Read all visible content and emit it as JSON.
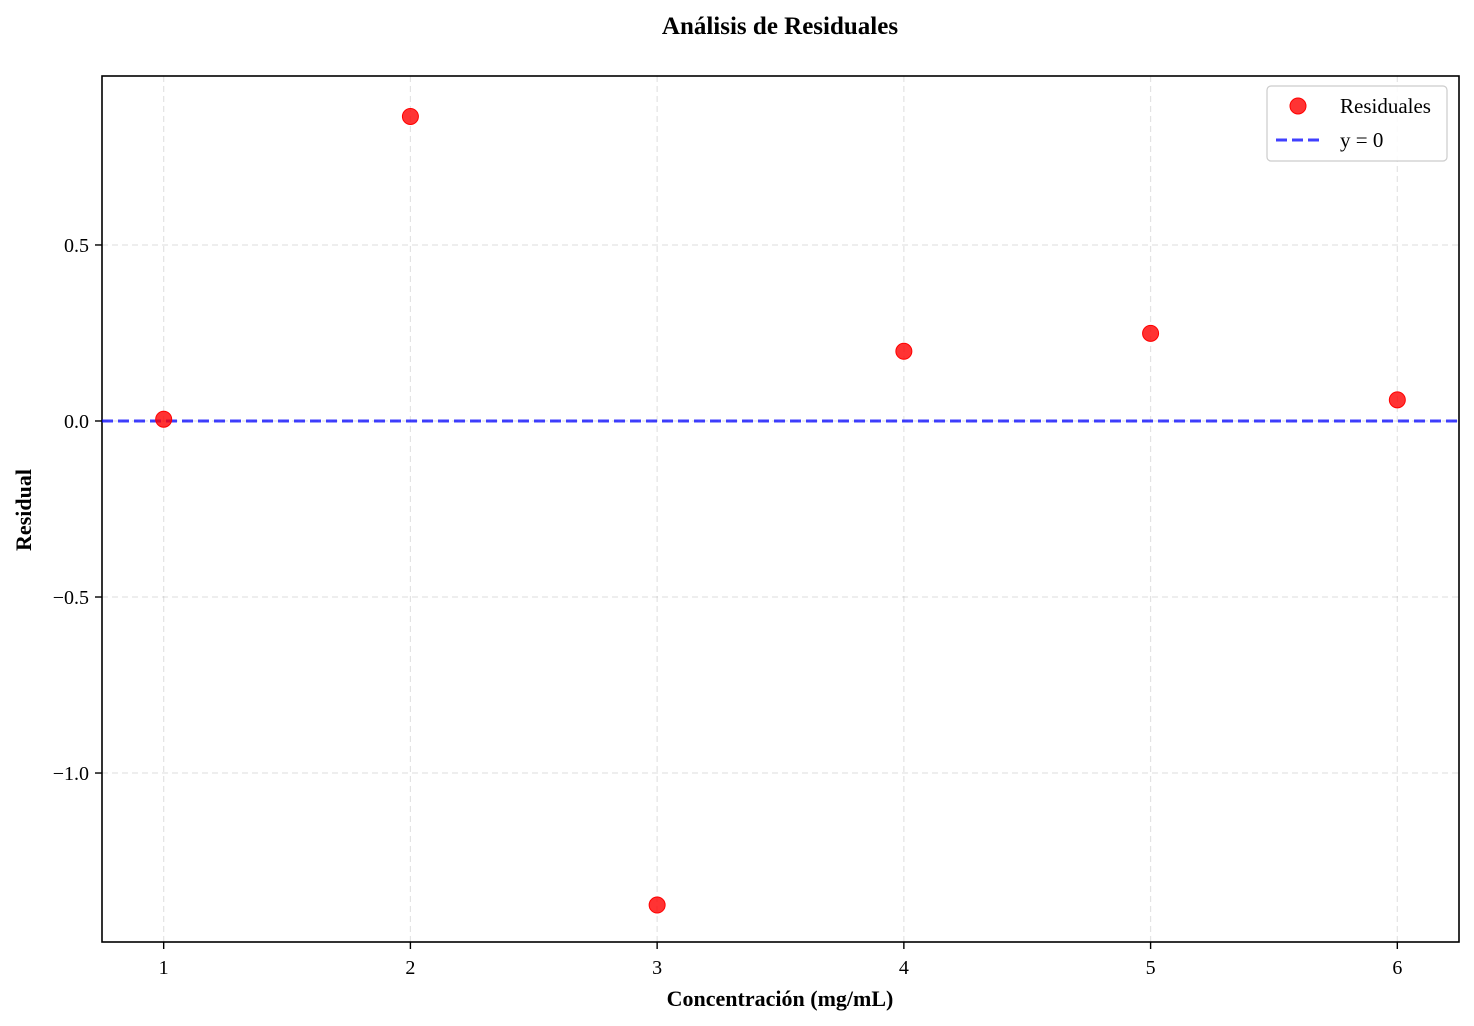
{
  "chart_data": {
    "type": "scatter",
    "title": "Análisis de Residuales",
    "xlabel": "Concentración (mg/mL)",
    "ylabel": "Residual",
    "xlim": [
      0.75,
      6.25
    ],
    "ylim": [
      -1.48,
      0.98
    ],
    "xticks": [
      1,
      2,
      3,
      4,
      5,
      6
    ],
    "xtick_labels": [
      "1",
      "2",
      "3",
      "4",
      "5",
      "6"
    ],
    "yticks": [
      -1.0,
      -0.5,
      0.0,
      0.5
    ],
    "ytick_labels": [
      "−1.0",
      "−0.5",
      "0.0",
      "0.5"
    ],
    "grid": true,
    "legend_position": "top-right",
    "series": [
      {
        "name": "Residuales",
        "type": "scatter",
        "color": "#ff0000",
        "x": [
          1,
          2,
          3,
          4,
          5,
          6
        ],
        "y": [
          0.005,
          0.865,
          -1.375,
          0.198,
          0.249,
          0.06
        ]
      },
      {
        "name": "y = 0",
        "type": "hline",
        "color": "#0000ff",
        "y": 0
      }
    ]
  }
}
